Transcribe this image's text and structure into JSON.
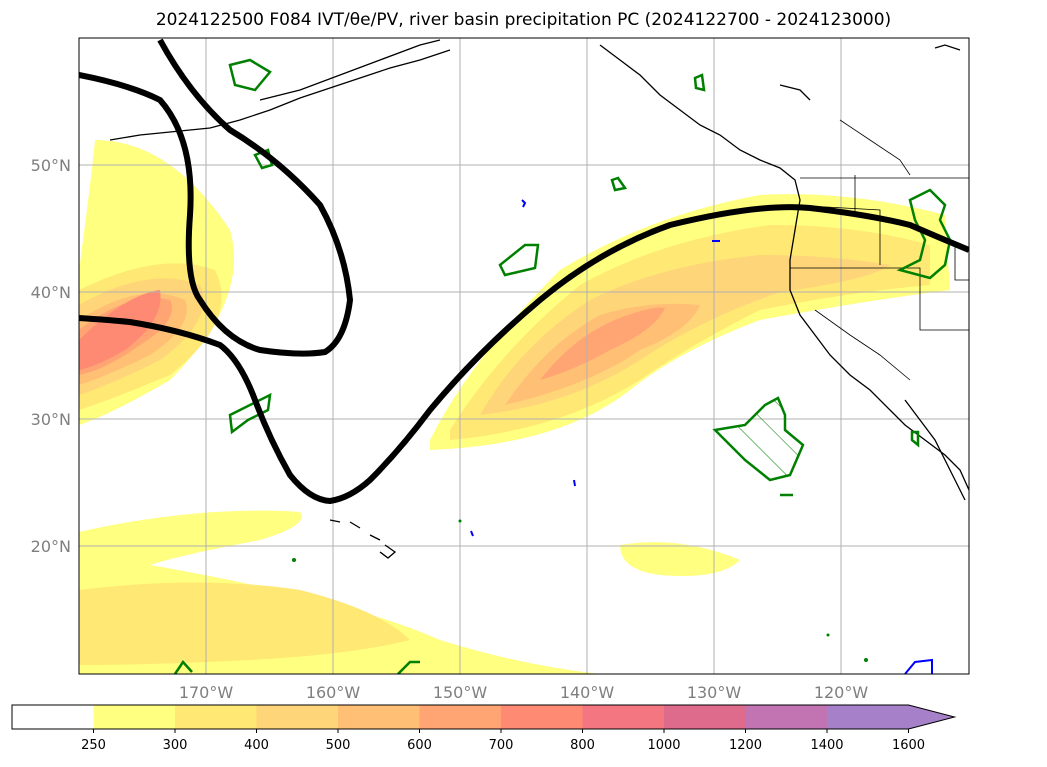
{
  "title": "2024122500 F084 IVT/θe/PV, river basin precipitation PC (2024122700 - 2024123000)",
  "map": {
    "lon_range": [
      -180,
      -110
    ],
    "lat_range": [
      10,
      60
    ],
    "lat_ticks": [
      {
        "value": 50,
        "label": "50°N"
      },
      {
        "value": 40,
        "label": "40°N"
      },
      {
        "value": 30,
        "label": "30°N"
      },
      {
        "value": 20,
        "label": "20°N"
      }
    ],
    "lon_ticks": [
      {
        "value": -170,
        "label": "170°W"
      },
      {
        "value": -160,
        "label": "160°W"
      },
      {
        "value": -150,
        "label": "150°W"
      },
      {
        "value": -140,
        "label": "140°W"
      },
      {
        "value": -130,
        "label": "130°W"
      },
      {
        "value": -120,
        "label": "120°W"
      }
    ],
    "grid": true,
    "tick_label_color": "#7f7f7f",
    "line_colors": {
      "pv_contour": "#000000",
      "precip_pc": "#008000",
      "theta_e": "#0000ff"
    }
  },
  "colorbar": {
    "levels": [
      "250",
      "300",
      "400",
      "500",
      "600",
      "700",
      "800",
      "1000",
      "1200",
      "1400",
      "1600"
    ],
    "colors": [
      "#ffffff",
      "#ffff80",
      "#ffe873",
      "#ffd57a",
      "#ffbf75",
      "#ffa473",
      "#ff8a73",
      "#f47680",
      "#de6a8c",
      "#c274b2",
      "#a680c8"
    ],
    "extend": "max"
  }
}
